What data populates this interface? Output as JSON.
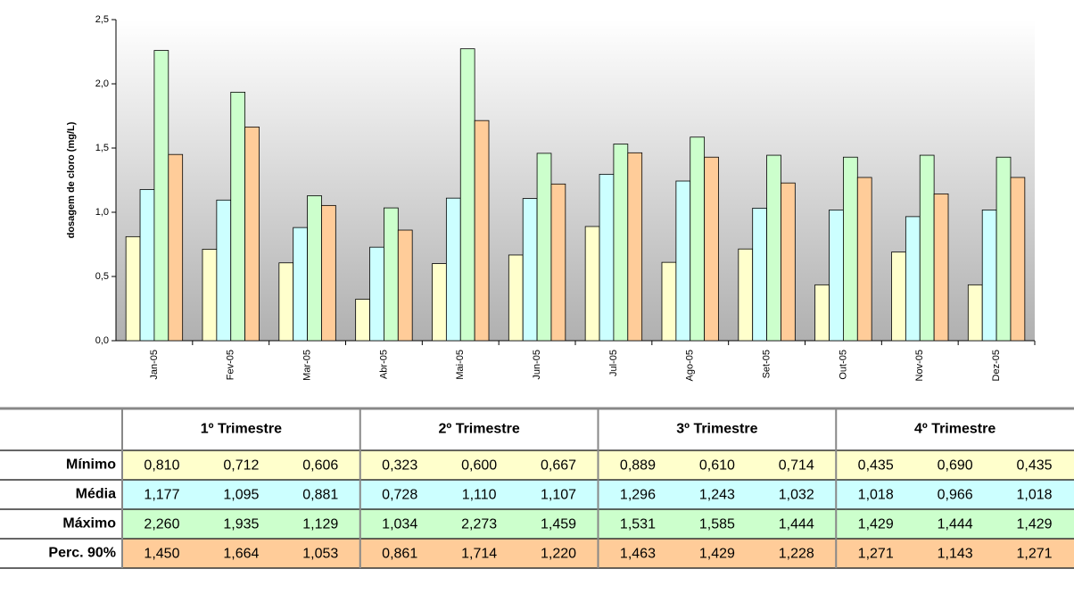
{
  "chart_data": {
    "type": "bar",
    "y_label": "dosagem de cloro (mg/L)",
    "categories": [
      "Jan-05",
      "Fev-05",
      "Mar-05",
      "Abr-05",
      "Mai-05",
      "Jun-05",
      "Jul-05",
      "Ago-05",
      "Set-05",
      "Out-05",
      "Nov-05",
      "Dez-05"
    ],
    "quarters": [
      "1º Trimestre",
      "2º Trimestre",
      "3º Trimestre",
      "4º Trimestre"
    ],
    "series": [
      {
        "name": "Mínimo",
        "color": "#ffffcc",
        "values": [
          0.81,
          0.712,
          0.606,
          0.323,
          0.6,
          0.667,
          0.889,
          0.61,
          0.714,
          0.435,
          0.69,
          0.435
        ],
        "value_labels": [
          "0,810",
          "0,712",
          "0,606",
          "0,323",
          "0,600",
          "0,667",
          "0,889",
          "0,610",
          "0,714",
          "0,435",
          "0,690",
          "0,435"
        ]
      },
      {
        "name": "Média",
        "color": "#ccffff",
        "values": [
          1.177,
          1.095,
          0.881,
          0.728,
          1.11,
          1.107,
          1.296,
          1.243,
          1.032,
          1.018,
          0.966,
          1.018
        ],
        "value_labels": [
          "1,177",
          "1,095",
          "0,881",
          "0,728",
          "1,110",
          "1,107",
          "1,296",
          "1,243",
          "1,032",
          "1,018",
          "0,966",
          "1,018"
        ]
      },
      {
        "name": "Máximo",
        "color": "#ccffcc",
        "values": [
          2.26,
          1.935,
          1.129,
          1.034,
          2.273,
          1.459,
          1.531,
          1.585,
          1.444,
          1.429,
          1.444,
          1.429
        ],
        "value_labels": [
          "2,260",
          "1,935",
          "1,129",
          "1,034",
          "2,273",
          "1,459",
          "1,531",
          "1,585",
          "1,444",
          "1,429",
          "1,444",
          "1,429"
        ]
      },
      {
        "name": "Perc. 90%",
        "color": "#ffcc99",
        "values": [
          1.45,
          1.664,
          1.053,
          0.861,
          1.714,
          1.22,
          1.463,
          1.429,
          1.228,
          1.271,
          1.143,
          1.271
        ],
        "value_labels": [
          "1,450",
          "1,664",
          "1,053",
          "0,861",
          "1,714",
          "1,220",
          "1,463",
          "1,429",
          "1,228",
          "1,271",
          "1,143",
          "1,271"
        ]
      }
    ],
    "ylim": [
      0,
      2.5
    ],
    "yticks": [
      {
        "value": 0,
        "label": "0,0"
      },
      {
        "value": 0.5,
        "label": "0,5"
      },
      {
        "value": 1,
        "label": "1,0"
      },
      {
        "value": 1.5,
        "label": "1,5"
      },
      {
        "value": 2,
        "label": "2,0"
      },
      {
        "value": 2.5,
        "label": "2,5"
      }
    ],
    "grid": false
  }
}
